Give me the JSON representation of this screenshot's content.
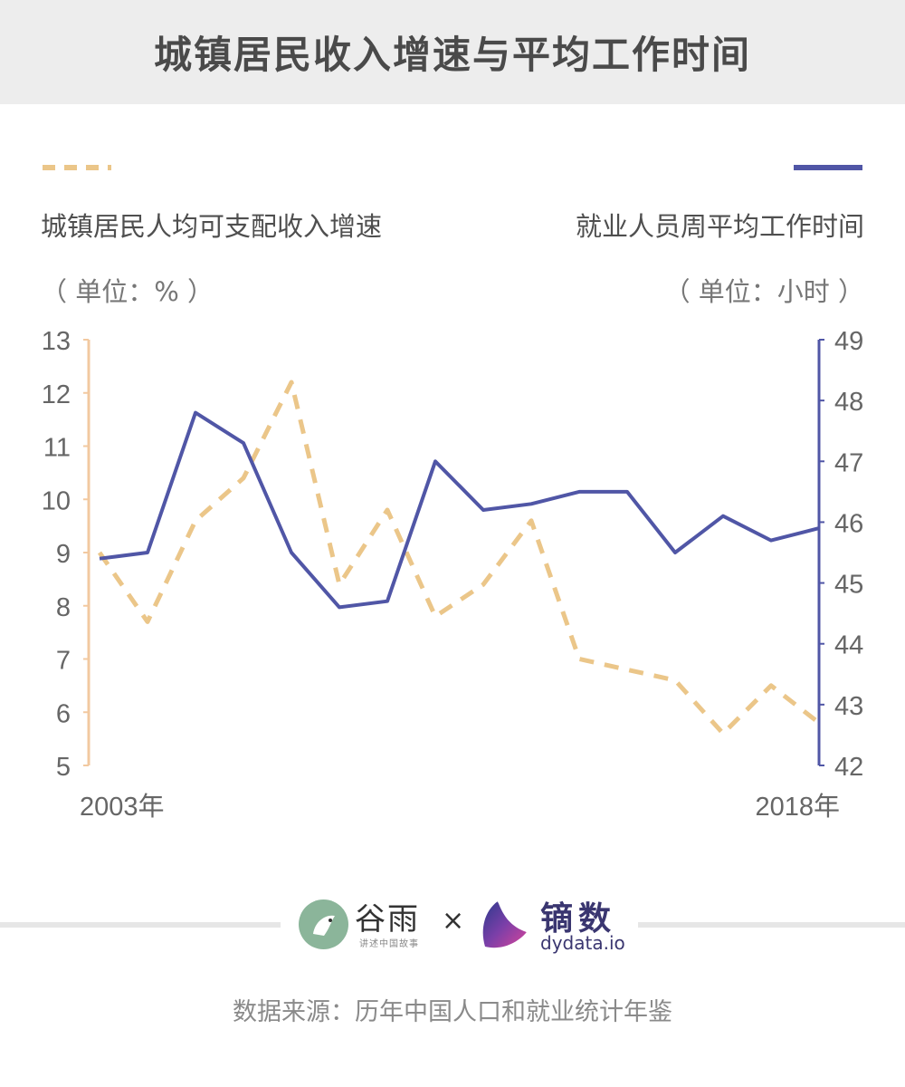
{
  "title": "城镇居民收入增速与平均工作时间",
  "legend": {
    "left": {
      "name": "城镇居民人均可支配收入增速",
      "unit": "（ 单位：% ）"
    },
    "right": {
      "name": "就业人员周平均工作时间",
      "unit": "（ 单位：小时 ）"
    }
  },
  "logos": {
    "guyu": "谷雨",
    "guyu_sub": "讲述中国故事",
    "times": "×",
    "dy": "镝数",
    "dy_sub": "dydata.io"
  },
  "source": "数据来源：历年中国人口和就业统计年鉴",
  "colors": {
    "income": "#ebc689",
    "hours": "#5056a6",
    "left_axis": "#f2c9a0",
    "right_axis": "#5056a6",
    "tick_text": "#666666"
  },
  "chart_data": {
    "type": "line",
    "x": [
      2003,
      2004,
      2005,
      2006,
      2007,
      2008,
      2009,
      2010,
      2011,
      2012,
      2013,
      2014,
      2015,
      2016,
      2017,
      2018
    ],
    "x_tick_labels": {
      "first": "2003年",
      "last": "2018年"
    },
    "series": [
      {
        "name": "城镇居民人均可支配收入增速",
        "axis": "left",
        "style": "dashed",
        "values": [
          9.0,
          7.7,
          9.6,
          10.4,
          12.2,
          8.4,
          9.8,
          7.8,
          8.4,
          9.6,
          7.0,
          6.8,
          6.6,
          5.6,
          6.5,
          5.8
        ]
      },
      {
        "name": "就业人员周平均工作时间",
        "axis": "right",
        "style": "solid",
        "values": [
          45.4,
          45.5,
          47.8,
          47.3,
          45.5,
          44.6,
          44.7,
          47.0,
          46.2,
          46.3,
          46.5,
          46.5,
          45.5,
          46.1,
          45.7,
          45.9
        ]
      }
    ],
    "y_left": {
      "range": [
        5,
        13
      ],
      "ticks": [
        5,
        6,
        7,
        8,
        9,
        10,
        11,
        12,
        13
      ]
    },
    "y_right": {
      "range": [
        42,
        49
      ],
      "ticks": [
        42,
        43,
        44,
        45,
        46,
        47,
        48,
        49
      ]
    },
    "grid": false
  }
}
